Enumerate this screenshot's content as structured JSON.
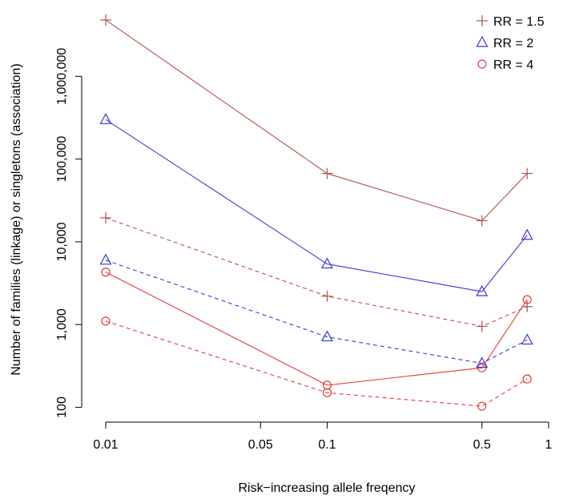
{
  "chart_data": {
    "type": "line",
    "x_scale": "log",
    "y_scale": "log",
    "xlabel": "Risk−increasing allele freqency",
    "ylabel": "Number of families (linkage) or singletons (association)",
    "x_ticks": [
      {
        "value": 0.01,
        "label": "0.01"
      },
      {
        "value": 0.05,
        "label": "0.05"
      },
      {
        "value": 0.1,
        "label": "0.1"
      },
      {
        "value": 0.5,
        "label": "0.5"
      },
      {
        "value": 1,
        "label": "1"
      }
    ],
    "y_ticks": [
      {
        "value": 100,
        "label": "100"
      },
      {
        "value": 1000,
        "label": "1,000"
      },
      {
        "value": 10000,
        "label": "10,000"
      },
      {
        "value": 100000,
        "label": "100,000"
      },
      {
        "value": 1000000,
        "label": "1,000,000"
      }
    ],
    "xlim": [
      0.01,
      1
    ],
    "ylim": [
      100,
      5000000
    ],
    "x": [
      0.01,
      0.1,
      0.5,
      0.8
    ],
    "series": [
      {
        "name": "RR = 1.5",
        "study": "linkage",
        "color": "#b5524f",
        "marker": "plus",
        "line": "solid",
        "values": [
          4800000,
          67000,
          18000,
          67000
        ]
      },
      {
        "name": "RR = 2",
        "study": "linkage",
        "color": "#3b3bd6",
        "marker": "triangle",
        "line": "solid",
        "values": [
          300000,
          5400,
          2500,
          12000
        ]
      },
      {
        "name": "RR = 4",
        "study": "linkage",
        "color": "#e63a3a",
        "marker": "circle",
        "line": "solid",
        "values": [
          4300,
          185,
          300,
          2000
        ]
      },
      {
        "name": "RR = 1.5",
        "study": "association",
        "color": "#b5524f",
        "marker": "plus",
        "line": "dashed",
        "values": [
          19500,
          2200,
          950,
          1650
        ]
      },
      {
        "name": "RR = 2",
        "study": "association",
        "color": "#3b3bd6",
        "marker": "triangle",
        "line": "dashed",
        "values": [
          6000,
          710,
          340,
          650
        ]
      },
      {
        "name": "RR = 4",
        "study": "association",
        "color": "#e63a3a",
        "marker": "circle",
        "line": "dashed",
        "values": [
          1100,
          150,
          103,
          220
        ]
      }
    ],
    "legend": {
      "position": "top-right",
      "entries": [
        {
          "label": "RR = 1.5",
          "color": "#b5524f",
          "marker": "plus"
        },
        {
          "label": "RR = 2",
          "color": "#3b3bd6",
          "marker": "triangle"
        },
        {
          "label": "RR = 4",
          "color": "#e63a3a",
          "marker": "circle"
        }
      ]
    },
    "grid": false
  }
}
